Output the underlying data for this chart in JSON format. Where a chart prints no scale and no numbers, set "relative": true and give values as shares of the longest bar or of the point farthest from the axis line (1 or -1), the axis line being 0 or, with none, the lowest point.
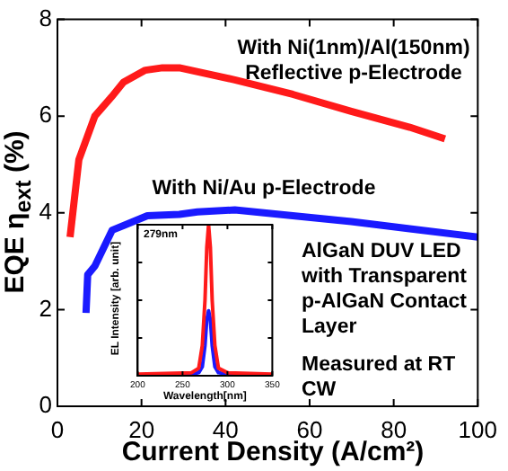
{
  "chart_data": [
    {
      "type": "line",
      "xlabel": "Current Density (A/cm²)",
      "ylabel": "EQE η$_{ext}$ (%)",
      "xlim": [
        0,
        100
      ],
      "xticks": [
        0,
        20,
        40,
        60,
        80,
        100
      ],
      "ylim": [
        0,
        8
      ],
      "yticks": [
        0,
        2,
        4,
        6,
        8
      ],
      "grid": false,
      "legend": false,
      "marker": "none",
      "line_style": "solid",
      "annotations": [
        "With Ni(1nm)/Al(150nm)\nReflective p-Electrode",
        "With Ni/Au p-Electrode",
        "AlGaN DUV LED\nwith Transparent\np-AlGaN Contact\nLayer",
        "Measured at RT\nCW"
      ],
      "series": [
        {
          "color": "#ff1a1a",
          "x": [
            3,
            5.1,
            8.9,
            12.9,
            15.7,
            20.9,
            25,
            29,
            42.2,
            56,
            69.9,
            83.8,
            92.2
          ],
          "values": [
            3.5,
            5.1,
            6,
            6.4,
            6.7,
            6.95,
            7,
            7,
            6.75,
            6.45,
            6.1,
            5.77,
            5.53
          ]
        },
        {
          "color": "#1a1aff",
          "x": [
            6.8,
            7.2,
            8.9,
            13,
            21.4,
            29,
            33.3,
            42.2,
            56,
            69.9,
            83.8,
            100
          ],
          "values": [
            1.93,
            2.72,
            2.9,
            3.64,
            3.94,
            3.97,
            4.02,
            4.06,
            3.94,
            3.82,
            3.67,
            3.5
          ]
        }
      ]
    },
    {
      "type": "line",
      "xlabel": "Wavelength[nm]",
      "ylabel": "EL Intensity [arb. unit]",
      "relative": true,
      "xlim": [
        200,
        350
      ],
      "xticks": [
        200,
        250,
        300,
        350
      ],
      "tick_labels": "x",
      "grid": false,
      "legend": false,
      "marker": "none",
      "line_style": "solid",
      "annotations": [
        "279nm"
      ],
      "series": [
        {
          "color": "#ff1a1a",
          "x": [
            200,
            260,
            268,
            272,
            275,
            277,
            279,
            281,
            283,
            286,
            290,
            300,
            350
          ],
          "values": [
            0.01,
            0.02,
            0.05,
            0.2,
            0.5,
            0.85,
            1,
            0.85,
            0.5,
            0.2,
            0.05,
            0.02,
            0.01
          ]
        },
        {
          "color": "#1a1aff",
          "x": [
            200,
            260,
            268,
            272,
            275,
            277,
            279,
            281,
            283,
            286,
            290,
            300,
            350
          ],
          "values": [
            0,
            0.01,
            0.02,
            0.06,
            0.2,
            0.37,
            0.43,
            0.37,
            0.2,
            0.06,
            0.02,
            0.01,
            0
          ]
        }
      ]
    }
  ]
}
